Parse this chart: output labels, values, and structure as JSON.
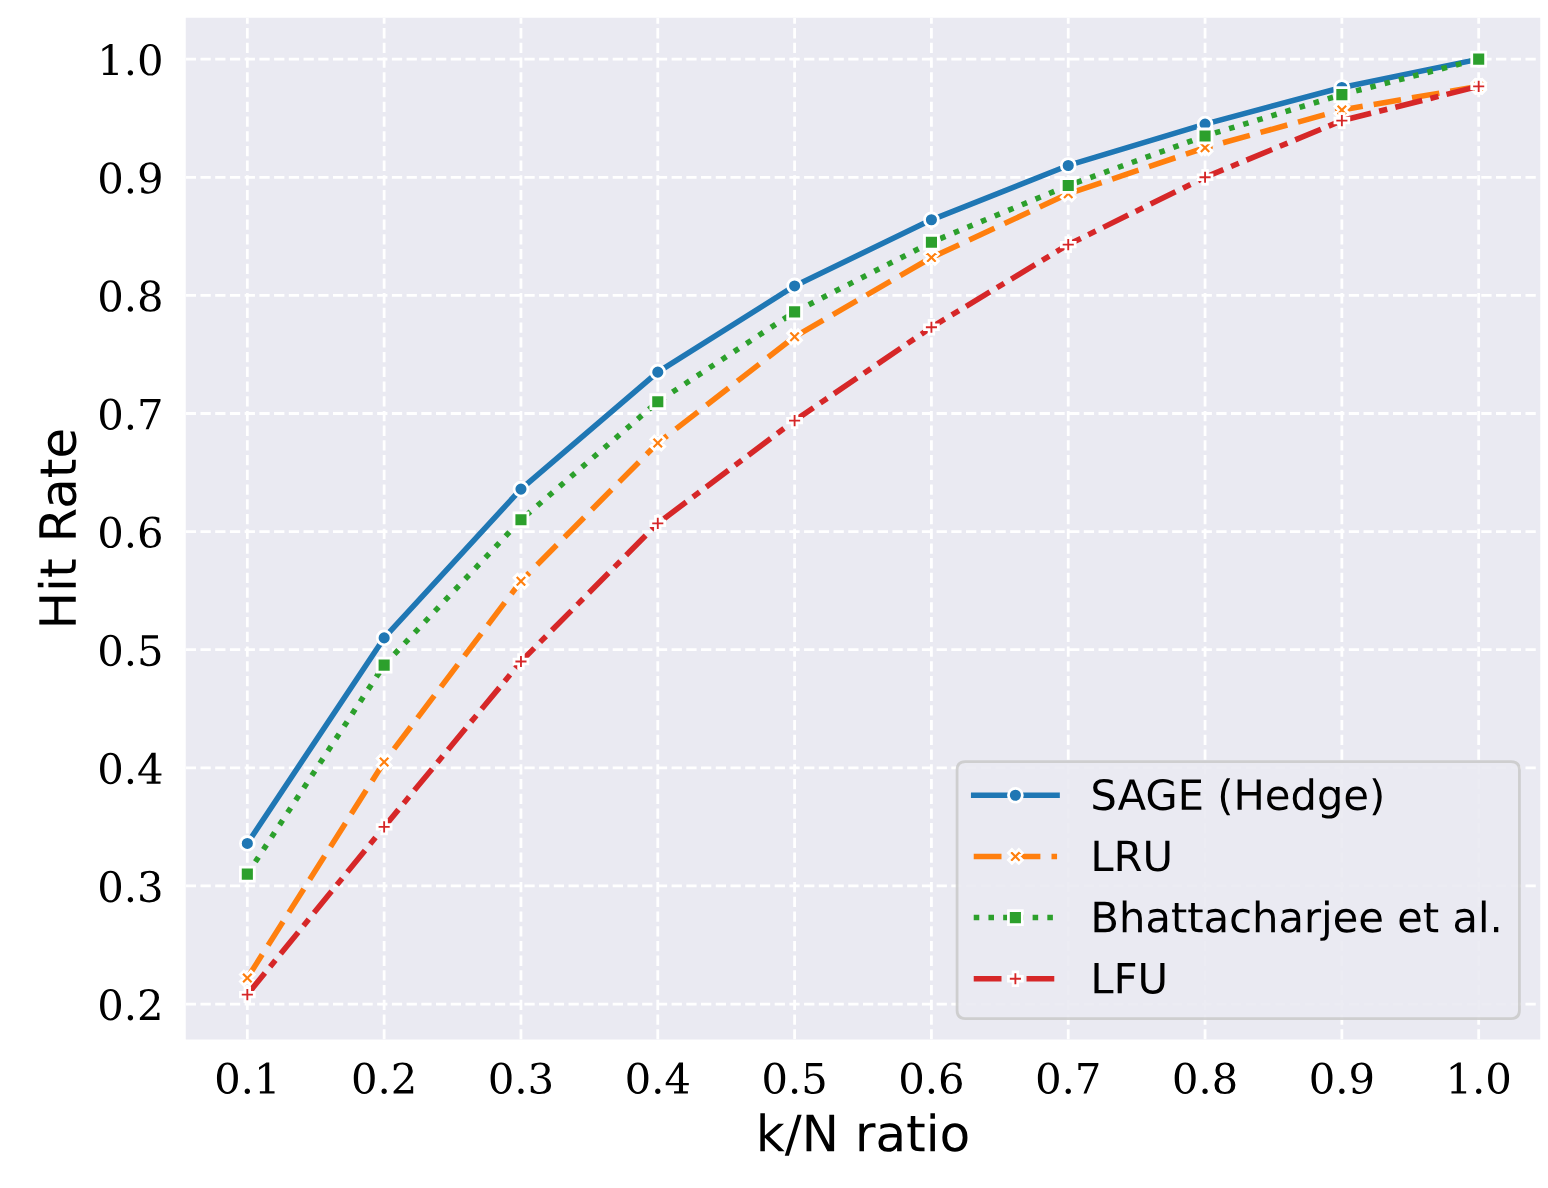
{
  "chart_data": {
    "type": "line",
    "xlabel": "k/N ratio",
    "ylabel": "Hit Rate",
    "x": [
      0.1,
      0.2,
      0.3,
      0.4,
      0.5,
      0.6,
      0.7,
      0.8,
      0.9,
      1.0
    ],
    "series": [
      {
        "name": "SAGE (Hedge)",
        "color": "#1f77b4",
        "marker": "circle",
        "line_style": "solid",
        "values": [
          0.336,
          0.51,
          0.636,
          0.735,
          0.808,
          0.864,
          0.91,
          0.945,
          0.976,
          1.0
        ]
      },
      {
        "name": "LRU",
        "color": "#ff7f0e",
        "marker": "cross",
        "line_style": "dashed",
        "values": [
          0.222,
          0.405,
          0.558,
          0.675,
          0.765,
          0.832,
          0.886,
          0.925,
          0.957,
          0.977
        ]
      },
      {
        "name": "Bhattacharjee et al.",
        "color": "#2ca02c",
        "marker": "square",
        "line_style": "dotted",
        "values": [
          0.31,
          0.487,
          0.61,
          0.71,
          0.786,
          0.845,
          0.893,
          0.935,
          0.97,
          1.0
        ]
      },
      {
        "name": "LFU",
        "color": "#d62728",
        "marker": "plus",
        "line_style": "dashdot",
        "values": [
          0.208,
          0.35,
          0.49,
          0.607,
          0.694,
          0.773,
          0.843,
          0.9,
          0.948,
          0.977
        ]
      }
    ],
    "xlim": [
      0.055,
      1.045
    ],
    "ylim": [
      0.17,
      1.035
    ],
    "xticks": [
      {
        "value": 0.1,
        "label": "0.1"
      },
      {
        "value": 0.2,
        "label": "0.2"
      },
      {
        "value": 0.3,
        "label": "0.3"
      },
      {
        "value": 0.4,
        "label": "0.4"
      },
      {
        "value": 0.5,
        "label": "0.5"
      },
      {
        "value": 0.6,
        "label": "0.6"
      },
      {
        "value": 0.7,
        "label": "0.7"
      },
      {
        "value": 0.8,
        "label": "0.8"
      },
      {
        "value": 0.9,
        "label": "0.9"
      },
      {
        "value": 1.0,
        "label": "1.0"
      }
    ],
    "yticks": [
      {
        "value": 0.2,
        "label": "0.2"
      },
      {
        "value": 0.3,
        "label": "0.3"
      },
      {
        "value": 0.4,
        "label": "0.4"
      },
      {
        "value": 0.5,
        "label": "0.5"
      },
      {
        "value": 0.6,
        "label": "0.6"
      },
      {
        "value": 0.7,
        "label": "0.7"
      },
      {
        "value": 0.8,
        "label": "0.8"
      },
      {
        "value": 0.9,
        "label": "0.9"
      },
      {
        "value": 1.0,
        "label": "1.0"
      }
    ],
    "grid": true,
    "legend": "bottom right"
  }
}
